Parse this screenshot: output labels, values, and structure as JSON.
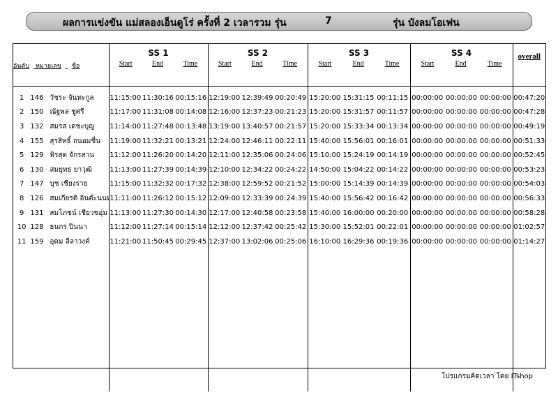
{
  "header": {
    "title": "ผลการแข่งขัน  แม่สลองเอ็นดูโร่ ครั้งที่ 2  เวลารวม   รุ่น",
    "class_no": "7",
    "class_name": "รุ่น บังลมโอเฟน"
  },
  "columns": {
    "rank": "อันดับ",
    "number": "หมายเลข",
    "name": "ชื่อ",
    "stages": [
      "SS 1",
      "SS 2",
      "SS 3",
      "SS 4"
    ],
    "start": "Start",
    "end": "End",
    "time": "Time",
    "overall": "overall"
  },
  "rows": [
    {
      "rank": "1",
      "no": "146",
      "name": "วัชระ  จันทะกูล",
      "ss": [
        [
          "11:15:00",
          "11:30:16",
          "00:15:16"
        ],
        [
          "12:19:00",
          "12:39:49",
          "00:20:49"
        ],
        [
          "15:20:00",
          "15:31:15",
          "00:11:15"
        ],
        [
          "00:00:00",
          "00:00:00",
          "00:00:00"
        ]
      ],
      "overall": "00:47:20"
    },
    {
      "rank": "2",
      "no": "150",
      "name": "ณัฐพล  ชูศรี",
      "ss": [
        [
          "11:17:00",
          "11:31:08",
          "00:14:08"
        ],
        [
          "12:16:00",
          "12:37:23",
          "00:21:23"
        ],
        [
          "15:20:00",
          "15:31:57",
          "00:11:57"
        ],
        [
          "00:00:00",
          "00:00:00",
          "00:00:00"
        ]
      ],
      "overall": "00:47:28"
    },
    {
      "rank": "3",
      "no": "132",
      "name": "สมรส  เดชะบุญ",
      "ss": [
        [
          "11:14:00",
          "11:27:48",
          "00:13:48"
        ],
        [
          "13:19:00",
          "13:40:57",
          "00:21:57"
        ],
        [
          "15:20:00",
          "15:33:34",
          "00:13:34"
        ],
        [
          "00:00:00",
          "00:00:00",
          "00:00:00"
        ]
      ],
      "overall": "00:49:19"
    },
    {
      "rank": "4",
      "no": "155",
      "name": "สุรสิทธิ์  ถนอมชื่น",
      "ss": [
        [
          "11:19:00",
          "11:32:21",
          "00:13:21"
        ],
        [
          "12:24:00",
          "12:46:11",
          "00:22:11"
        ],
        [
          "15:40:00",
          "15:56:01",
          "00:16:01"
        ],
        [
          "00:00:00",
          "00:00:00",
          "00:00:00"
        ]
      ],
      "overall": "00:51:33"
    },
    {
      "rank": "5",
      "no": "129",
      "name": "พิรสุด  จักรสาน",
      "ss": [
        [
          "11:12:00",
          "11:26:20",
          "00:14:20"
        ],
        [
          "12:11:00",
          "12:35:06",
          "00:24:06"
        ],
        [
          "15:10:00",
          "15:24:19",
          "00:14:19"
        ],
        [
          "00:00:00",
          "00:00:00",
          "00:00:00"
        ]
      ],
      "overall": "00:52:45"
    },
    {
      "rank": "6",
      "no": "130",
      "name": "สมยุทธ  ยาวุฒิ",
      "ss": [
        [
          "11:13:00",
          "11:27:39",
          "00:14:39"
        ],
        [
          "12:10:00",
          "12:34:22",
          "00:24:22"
        ],
        [
          "14:50:00",
          "15:04:22",
          "00:14:22"
        ],
        [
          "00:00:00",
          "00:00:00",
          "00:00:00"
        ]
      ],
      "overall": "00:53:23"
    },
    {
      "rank": "7",
      "no": "147",
      "name": "บุช  เชียงราย",
      "ss": [
        [
          "11:15:00",
          "11:32:32",
          "00:17:32"
        ],
        [
          "12:38:00",
          "12:59:52",
          "00:21:52"
        ],
        [
          "15:00:00",
          "15:14:39",
          "00:14:39"
        ],
        [
          "00:00:00",
          "00:00:00",
          "00:00:00"
        ]
      ],
      "overall": "00:54:03"
    },
    {
      "rank": "8",
      "no": "126",
      "name": "สมเกียรติ  อินต๊ะนนท์",
      "ss": [
        [
          "11:11:00",
          "11:26:12",
          "00:15:12"
        ],
        [
          "12:09:00",
          "12:33:39",
          "00:24:39"
        ],
        [
          "15:40:00",
          "15:56:42",
          "00:16:42"
        ],
        [
          "00:00:00",
          "00:00:00",
          "00:00:00"
        ]
      ],
      "overall": "00:56:33"
    },
    {
      "rank": "9",
      "no": "131",
      "name": "สมโภชน์  เชียวชอุ่ม",
      "ss": [
        [
          "11:13:00",
          "11:27:30",
          "00:14:30"
        ],
        [
          "12:17:00",
          "12:40:58",
          "00:23:58"
        ],
        [
          "15:40:00",
          "16:00:00",
          "00:20:00"
        ],
        [
          "00:00:00",
          "00:00:00",
          "00:00:00"
        ]
      ],
      "overall": "00:58:28"
    },
    {
      "rank": "10",
      "no": "128",
      "name": "ธนกร  ปินนา",
      "ss": [
        [
          "11:12:00",
          "11:27:14",
          "00:15:14"
        ],
        [
          "12:12:00",
          "12:37:42",
          "00:25:42"
        ],
        [
          "15:30:00",
          "15:52:01",
          "00:22:01"
        ],
        [
          "00:00:00",
          "00:00:00",
          "00:00:00"
        ]
      ],
      "overall": "01:02:57"
    },
    {
      "rank": "11",
      "no": "159",
      "name": "อุดม  ลีลาวงค์",
      "ss": [
        [
          "11:21:00",
          "11:50:45",
          "00:29:45"
        ],
        [
          "12:37:00",
          "13:02:06",
          "00:25:06"
        ],
        [
          "16:10:00",
          "16:29:36",
          "00:19:36"
        ],
        [
          "00:00:00",
          "00:00:00",
          "00:00:00"
        ]
      ],
      "overall": "01:14:27"
    }
  ],
  "footer": "โปรแกรมคิดเวลา โดย ITshop"
}
